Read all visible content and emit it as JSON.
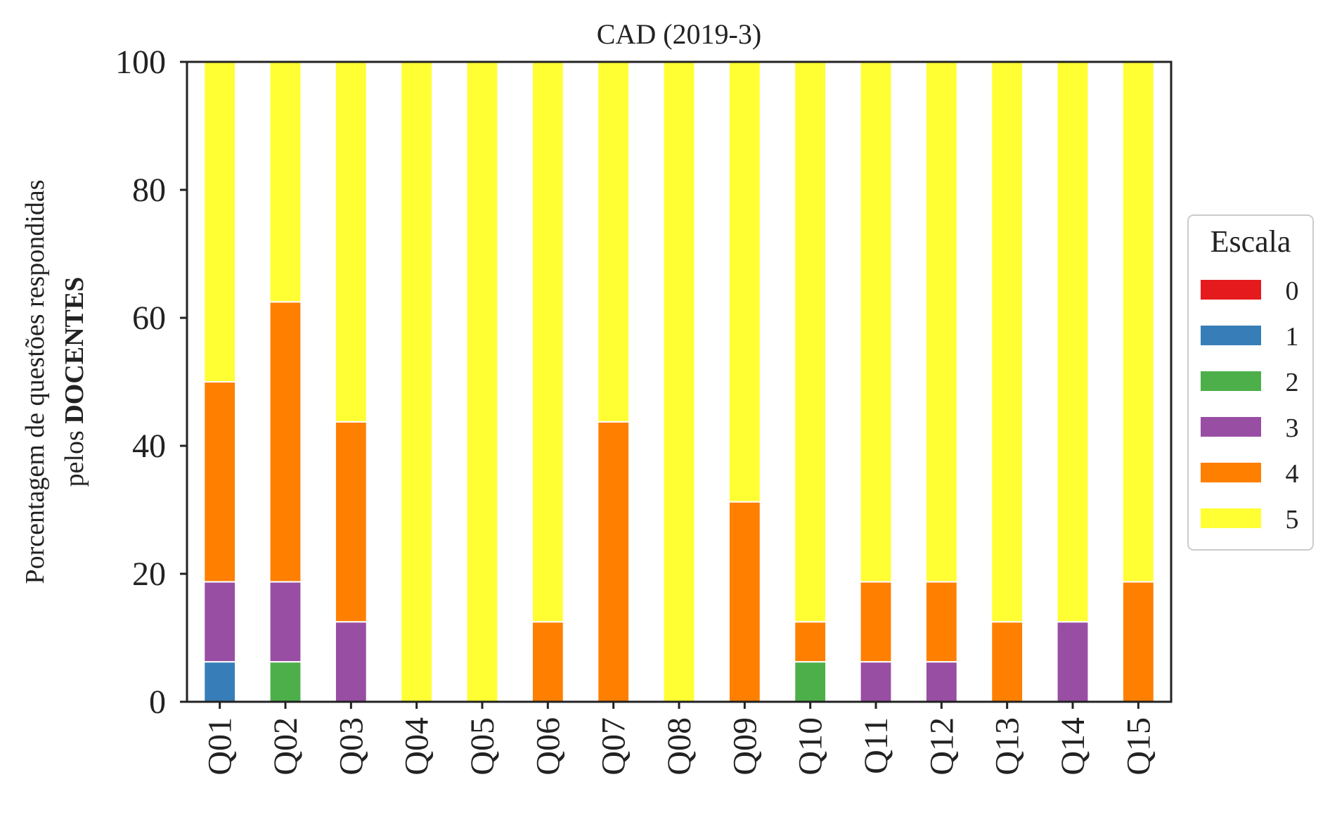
{
  "chart_data": {
    "type": "bar",
    "stacked": true,
    "title": "CAD (2019-3)",
    "ylabel_line1": "Porcentagem de questões respondidas",
    "ylabel_line2_prefix": "pelos ",
    "ylabel_line2_bold": "DOCENTES",
    "xlabel": "",
    "ylim": [
      0,
      100
    ],
    "yticks": [
      "0",
      "20",
      "40",
      "60",
      "80",
      "100"
    ],
    "grid": false,
    "legend": {
      "title": "Escala",
      "placement": "center-right"
    },
    "categories": [
      "Q01",
      "Q02",
      "Q03",
      "Q04",
      "Q05",
      "Q06",
      "Q07",
      "Q08",
      "Q09",
      "Q10",
      "Q11",
      "Q12",
      "Q13",
      "Q14",
      "Q15"
    ],
    "series": [
      {
        "name": "0",
        "color": "#e41a1c",
        "values": [
          0,
          0,
          0,
          0,
          0,
          0,
          0,
          0,
          0,
          0,
          0,
          0,
          0,
          0,
          0
        ]
      },
      {
        "name": "1",
        "color": "#377eb8",
        "values": [
          6.25,
          0,
          0,
          0,
          0,
          0,
          0,
          0,
          0,
          0,
          0,
          0,
          0,
          0,
          0
        ]
      },
      {
        "name": "2",
        "color": "#4daf4a",
        "values": [
          0,
          6.25,
          0,
          0,
          0,
          0,
          0,
          0,
          0,
          6.25,
          0,
          0,
          0,
          0,
          0
        ]
      },
      {
        "name": "3",
        "color": "#984ea3",
        "values": [
          12.5,
          12.5,
          12.5,
          0,
          0,
          0,
          0,
          0,
          0,
          0,
          6.25,
          6.25,
          0,
          12.5,
          0
        ]
      },
      {
        "name": "4",
        "color": "#ff7f00",
        "values": [
          31.25,
          43.75,
          31.25,
          0,
          0,
          12.5,
          43.75,
          0,
          31.25,
          6.25,
          12.5,
          12.5,
          12.5,
          0,
          18.75
        ]
      },
      {
        "name": "5",
        "color": "#ffff33",
        "values": [
          50,
          37.5,
          56.25,
          100,
          100,
          87.5,
          56.25,
          100,
          68.75,
          87.5,
          81.25,
          81.25,
          87.5,
          87.5,
          81.25
        ]
      }
    ]
  }
}
